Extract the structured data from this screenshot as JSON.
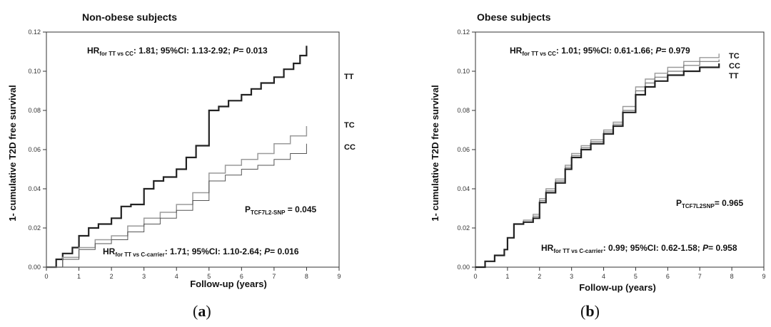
{
  "chart_data": [
    {
      "type": "line",
      "panel_label": "a",
      "title": "Non-obese subjects",
      "xlabel": "Follow-up (years)",
      "ylabel": "1- cumulative T2D free survival",
      "xlim": [
        0,
        9
      ],
      "ylim": [
        0,
        0.12
      ],
      "x_ticks": [
        "0",
        "1",
        "2",
        "3",
        "4",
        "5",
        "6",
        "7",
        "8",
        "9"
      ],
      "y_ticks": [
        "0.00",
        "0.02",
        "0.04",
        "0.06",
        "0.08",
        "0.10",
        "0.12"
      ],
      "annotations": {
        "hr_top": {
          "prefix": "HR",
          "sub": "for TT vs CC",
          "text": ": 1.81; 95%CI: 1.13-2.92; ",
          "p_label": "P",
          "p_value": "= 0.013"
        },
        "p_snp": {
          "prefix": "P",
          "sub": "TCF7L2-SNP",
          "text": " = 0.045"
        },
        "hr_bottom": {
          "prefix": "HR",
          "sub": "for TT vs C-carrier",
          "text": ": 1.71; 95%CI: 1.10-2.64; ",
          "p_label": "P",
          "p_value": "= 0.016"
        }
      },
      "series": [
        {
          "name": "TT",
          "color": "#222222",
          "width": 2.2,
          "x": [
            0,
            0.3,
            0.5,
            0.8,
            1.0,
            1.3,
            1.6,
            2.0,
            2.3,
            2.6,
            3.0,
            3.3,
            3.6,
            4.0,
            4.3,
            4.6,
            5.0,
            5.3,
            5.6,
            6.0,
            6.3,
            6.6,
            7.0,
            7.3,
            7.6,
            7.8,
            8.0
          ],
          "y": [
            0,
            0.004,
            0.007,
            0.01,
            0.016,
            0.02,
            0.022,
            0.025,
            0.031,
            0.032,
            0.04,
            0.044,
            0.046,
            0.05,
            0.056,
            0.062,
            0.08,
            0.082,
            0.085,
            0.088,
            0.091,
            0.094,
            0.097,
            0.101,
            0.104,
            0.108,
            0.113
          ]
        },
        {
          "name": "TC",
          "color": "#9a9a9a",
          "width": 1.5,
          "x": [
            0,
            0.5,
            1.0,
            1.5,
            2.0,
            2.5,
            3.0,
            3.5,
            4.0,
            4.5,
            5.0,
            5.5,
            6.0,
            6.5,
            7.0,
            7.5,
            8.0
          ],
          "y": [
            0,
            0.005,
            0.01,
            0.014,
            0.016,
            0.021,
            0.025,
            0.028,
            0.032,
            0.038,
            0.048,
            0.052,
            0.055,
            0.058,
            0.063,
            0.067,
            0.072
          ]
        },
        {
          "name": "CC",
          "color": "#555555",
          "width": 1.0,
          "x": [
            0,
            0.5,
            1.0,
            1.5,
            2.0,
            2.5,
            3.0,
            3.5,
            4.0,
            4.5,
            5.0,
            5.5,
            6.0,
            6.5,
            7.0,
            7.5,
            8.0
          ],
          "y": [
            0,
            0.004,
            0.009,
            0.012,
            0.014,
            0.018,
            0.022,
            0.025,
            0.029,
            0.034,
            0.044,
            0.047,
            0.05,
            0.052,
            0.055,
            0.058,
            0.063
          ]
        }
      ]
    },
    {
      "type": "line",
      "panel_label": "b",
      "title": "Obese subjects",
      "xlabel": "Follow-up (years)",
      "ylabel": "1- cumulative T2D free survival",
      "xlim": [
        0,
        9
      ],
      "ylim": [
        0,
        0.12
      ],
      "x_ticks": [
        "0",
        "1",
        "2",
        "3",
        "4",
        "5",
        "6",
        "7",
        "8",
        "9"
      ],
      "y_ticks": [
        "0.00",
        "0.02",
        "0.04",
        "0.06",
        "0.08",
        "0.10",
        "0.12"
      ],
      "annotations": {
        "hr_top": {
          "prefix": "HR",
          "sub": "for TT vs CC",
          "text": ": 1.01; 95%CI: 0.61-1.66; ",
          "p_label": "P",
          "p_value": "= 0.979"
        },
        "p_snp": {
          "prefix": "P",
          "sub": "TCF7L2SNP",
          "text": "= 0.965"
        },
        "hr_bottom": {
          "prefix": "HR",
          "sub": "for TT vs C-carrier",
          "text": ": 0.99; 95%CI: 0.62-1.58; ",
          "p_label": "P",
          "p_value": "= 0.958"
        }
      },
      "series": [
        {
          "name": "TC",
          "color": "#9a9a9a",
          "width": 1.4,
          "x": [
            0,
            0.3,
            0.6,
            0.9,
            1.0,
            1.2,
            1.5,
            1.8,
            2.0,
            2.2,
            2.5,
            2.8,
            3.0,
            3.3,
            3.6,
            4.0,
            4.3,
            4.6,
            5.0,
            5.3,
            5.6,
            6.0,
            6.5,
            7.0,
            7.6
          ],
          "y": [
            0,
            0.003,
            0.006,
            0.009,
            0.015,
            0.022,
            0.024,
            0.027,
            0.035,
            0.04,
            0.045,
            0.052,
            0.058,
            0.062,
            0.065,
            0.07,
            0.074,
            0.082,
            0.092,
            0.096,
            0.099,
            0.102,
            0.105,
            0.107,
            0.109
          ]
        },
        {
          "name": "CC",
          "color": "#777777",
          "width": 1.2,
          "x": [
            0,
            0.3,
            0.6,
            0.9,
            1.0,
            1.2,
            1.5,
            1.8,
            2.0,
            2.2,
            2.5,
            2.8,
            3.0,
            3.3,
            3.6,
            4.0,
            4.3,
            4.6,
            5.0,
            5.3,
            5.6,
            6.0,
            6.5,
            7.0,
            7.6
          ],
          "y": [
            0,
            0.003,
            0.006,
            0.009,
            0.015,
            0.022,
            0.023,
            0.026,
            0.034,
            0.039,
            0.044,
            0.051,
            0.057,
            0.061,
            0.064,
            0.069,
            0.073,
            0.08,
            0.09,
            0.094,
            0.097,
            0.1,
            0.103,
            0.105,
            0.106
          ]
        },
        {
          "name": "TT",
          "color": "#222222",
          "width": 2.2,
          "x": [
            0,
            0.3,
            0.6,
            0.9,
            1.0,
            1.2,
            1.5,
            1.8,
            2.0,
            2.2,
            2.5,
            2.8,
            3.0,
            3.3,
            3.6,
            4.0,
            4.3,
            4.6,
            5.0,
            5.3,
            5.6,
            6.0,
            6.5,
            7.0,
            7.6
          ],
          "y": [
            0,
            0.003,
            0.006,
            0.009,
            0.015,
            0.022,
            0.023,
            0.025,
            0.033,
            0.038,
            0.043,
            0.05,
            0.056,
            0.06,
            0.063,
            0.068,
            0.072,
            0.079,
            0.088,
            0.092,
            0.095,
            0.098,
            0.1,
            0.102,
            0.104
          ]
        }
      ]
    }
  ]
}
